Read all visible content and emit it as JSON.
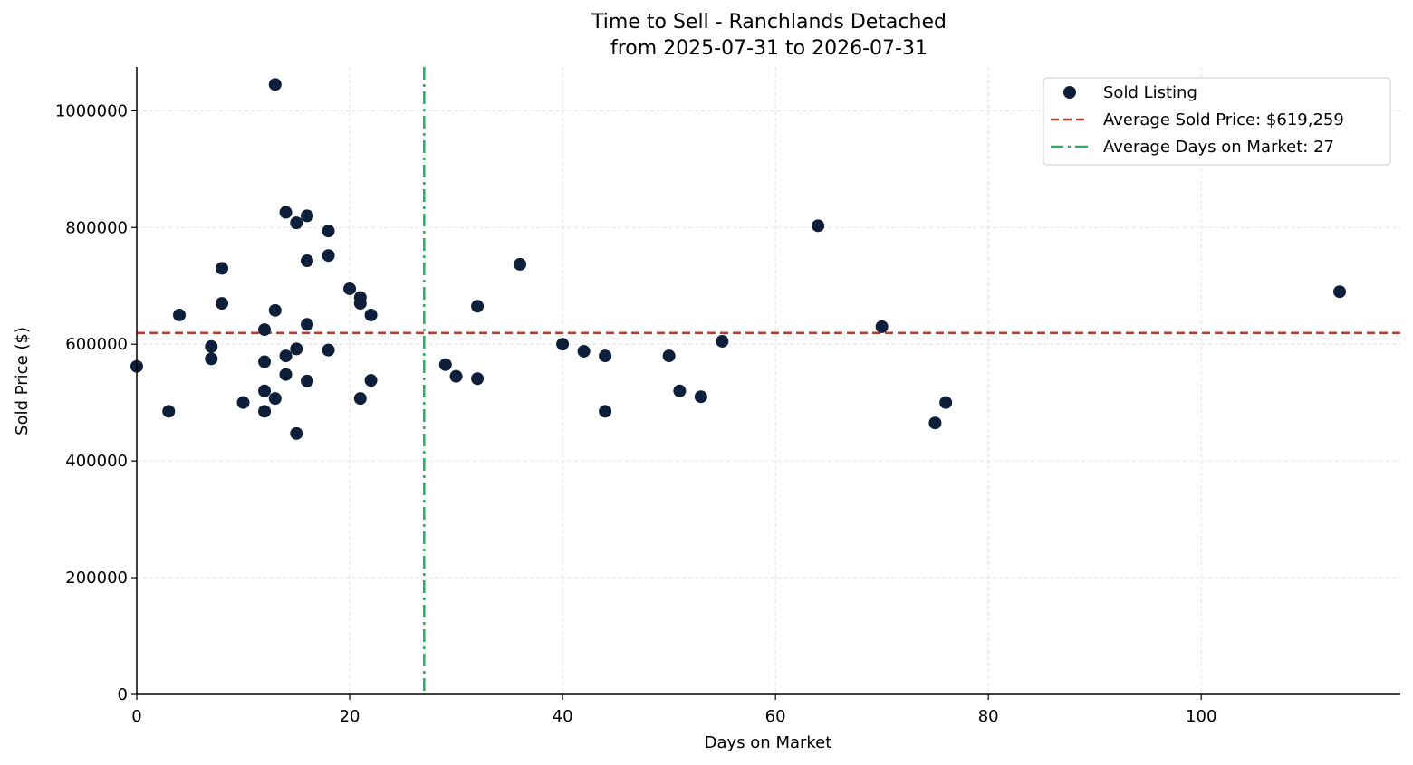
{
  "chart_data": {
    "type": "scatter",
    "title": "Time to Sell - Ranchlands Detached",
    "subtitle": "from 2025-07-31 to 2026-07-31",
    "xlabel": "Days on Market",
    "ylabel": "Sold Price ($)",
    "xlim": [
      0,
      118.7
    ],
    "ylim": [
      0,
      1075000
    ],
    "xticks": [
      "0",
      "20",
      "40",
      "60",
      "80",
      "100"
    ],
    "yticks": [
      "0",
      "200000",
      "400000",
      "600000",
      "800000",
      "1000000"
    ],
    "grid": true,
    "legend_position": "top-right",
    "colors": {
      "points": "#0d1f3a",
      "avg_price": "#c0392b",
      "avg_days": "#27ae60"
    },
    "series": [
      {
        "name": "Sold Listing",
        "points": [
          [
            0,
            562000
          ],
          [
            3,
            485000
          ],
          [
            4,
            650000
          ],
          [
            7,
            596000
          ],
          [
            7,
            575000
          ],
          [
            8,
            730000
          ],
          [
            8,
            670000
          ],
          [
            10,
            500000
          ],
          [
            12,
            625000
          ],
          [
            12,
            570000
          ],
          [
            12,
            520000
          ],
          [
            12,
            485000
          ],
          [
            13,
            1045000
          ],
          [
            13,
            658000
          ],
          [
            13,
            507000
          ],
          [
            14,
            826000
          ],
          [
            14,
            580000
          ],
          [
            14,
            548000
          ],
          [
            15,
            808000
          ],
          [
            15,
            592000
          ],
          [
            15,
            447000
          ],
          [
            16,
            820000
          ],
          [
            16,
            743000
          ],
          [
            16,
            634000
          ],
          [
            16,
            537000
          ],
          [
            18,
            794000
          ],
          [
            18,
            752000
          ],
          [
            18,
            590000
          ],
          [
            20,
            695000
          ],
          [
            21,
            680000
          ],
          [
            21,
            670000
          ],
          [
            21,
            507000
          ],
          [
            22,
            650000
          ],
          [
            22,
            538000
          ],
          [
            29,
            565000
          ],
          [
            30,
            545000
          ],
          [
            32,
            665000
          ],
          [
            32,
            541000
          ],
          [
            36,
            737000
          ],
          [
            40,
            600000
          ],
          [
            42,
            588000
          ],
          [
            44,
            580000
          ],
          [
            44,
            485000
          ],
          [
            50,
            580000
          ],
          [
            51,
            520000
          ],
          [
            53,
            510000
          ],
          [
            55,
            605000
          ],
          [
            64,
            803000
          ],
          [
            70,
            630000
          ],
          [
            75,
            465000
          ],
          [
            76,
            500000
          ],
          [
            113,
            690000
          ]
        ]
      }
    ],
    "reference_lines": [
      {
        "name": "Average Sold Price: $619,259",
        "orientation": "horizontal",
        "value": 619259,
        "style": "dashed"
      },
      {
        "name": "Average Days on Market: 27",
        "orientation": "vertical",
        "value": 27,
        "style": "dash-dot"
      }
    ]
  }
}
